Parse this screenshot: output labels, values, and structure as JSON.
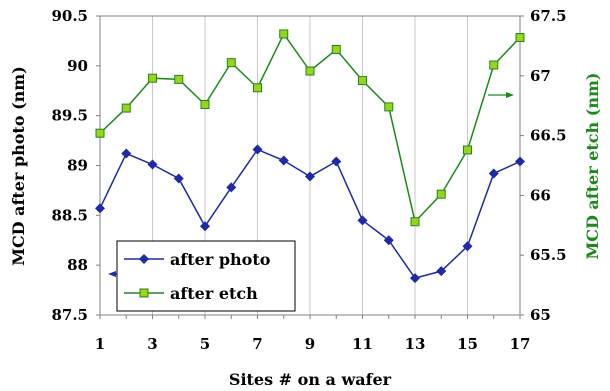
{
  "chart_data": {
    "type": "line",
    "xlabel": "Sites # on a wafer",
    "ylabel_left": "MCD after photo (nm)",
    "ylabel_right": "MCD after etch (nm)",
    "x": [
      1,
      2,
      3,
      4,
      5,
      6,
      7,
      8,
      9,
      10,
      11,
      12,
      13,
      14,
      15,
      16,
      17
    ],
    "x_tick_labels": [
      "1",
      "3",
      "5",
      "7",
      "9",
      "11",
      "13",
      "15",
      "17"
    ],
    "x_tick_values": [
      1,
      3,
      5,
      7,
      9,
      11,
      13,
      15,
      17
    ],
    "ylim_left": [
      87.5,
      90.5
    ],
    "ylim_right": [
      65,
      67.5
    ],
    "y_left_tick_labels": [
      "87.5",
      "88",
      "88.5",
      "89",
      "89.5",
      "90",
      "90.5"
    ],
    "y_left_tick_values": [
      87.5,
      88,
      88.5,
      89,
      89.5,
      90,
      90.5
    ],
    "y_right_tick_labels": [
      "65",
      "65.5",
      "66",
      "66.5",
      "67",
      "67.5"
    ],
    "y_right_tick_values": [
      65,
      65.5,
      66,
      66.5,
      67,
      67.5
    ],
    "grid": "vertical",
    "legend_position": "bottom-left",
    "series": [
      {
        "name": "after photo",
        "axis": "left",
        "color": "#1f2aa5",
        "marker": "diamond",
        "values": [
          88.57,
          89.12,
          89.01,
          88.87,
          88.39,
          88.78,
          89.16,
          89.05,
          88.89,
          89.04,
          88.45,
          88.25,
          87.87,
          87.94,
          88.19,
          88.92,
          89.04
        ]
      },
      {
        "name": "after etch",
        "axis": "right",
        "color": "#1b8a1b",
        "marker_fill": "#9ad21c",
        "marker": "square",
        "values": [
          66.52,
          66.73,
          66.98,
          66.97,
          66.76,
          67.11,
          66.9,
          67.35,
          67.04,
          67.22,
          66.96,
          66.74,
          65.78,
          66.01,
          66.38,
          67.09,
          67.32
        ]
      }
    ]
  }
}
